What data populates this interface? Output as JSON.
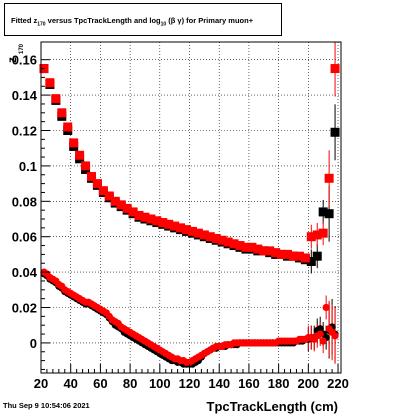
{
  "title": {
    "prefix": "Fitted  z",
    "z_sub": "170",
    "middle": " versus TpcTrackLength and log",
    "log_sub": "10",
    "suffix": " (β  γ) for Primary muon+"
  },
  "date_stamp": "Thu Sep  9 10:54:06 2021",
  "chart_data": {
    "type": "scatter",
    "title": "Fitted z170 versus TpcTrackLength and log10 (β γ) for Primary muon+",
    "xlabel": "TpcTrackLength (cm)",
    "ylabel": "z",
    "ylabel_sub": "170",
    "xlim": [
      20,
      222
    ],
    "ylim": [
      -0.017,
      0.17
    ],
    "grid": true,
    "x_ticks": [
      {
        "v": 20,
        "label": "20"
      },
      {
        "v": 40,
        "label": "40"
      },
      {
        "v": 60,
        "label": "60"
      },
      {
        "v": 80,
        "label": "80"
      },
      {
        "v": 100,
        "label": "100"
      },
      {
        "v": 120,
        "label": "120"
      },
      {
        "v": 140,
        "label": "140"
      },
      {
        "v": 160,
        "label": "160"
      },
      {
        "v": 180,
        "label": "180"
      },
      {
        "v": 200,
        "label": "200"
      },
      {
        "v": 220,
        "label": "220"
      }
    ],
    "y_ticks": [
      {
        "v": 0,
        "label": "0"
      },
      {
        "v": 0.02,
        "label": "0.02"
      },
      {
        "v": 0.04,
        "label": "0.04"
      },
      {
        "v": 0.06,
        "label": "0.06"
      },
      {
        "v": 0.08,
        "label": "0.08"
      },
      {
        "v": 0.1,
        "label": "0.1"
      },
      {
        "v": 0.12,
        "label": "0.12"
      },
      {
        "v": 0.14,
        "label": "0.14"
      },
      {
        "v": 0.16,
        "label": "0.16"
      }
    ],
    "series": [
      {
        "marker": "square",
        "color": "#000000",
        "x": [
          22,
          26,
          30,
          34,
          38,
          42,
          46,
          50,
          54,
          58,
          62,
          66,
          70,
          74,
          78,
          82,
          86,
          90,
          94,
          98,
          102,
          106,
          110,
          114,
          118,
          122,
          126,
          130,
          134,
          138,
          142,
          146,
          150,
          154,
          158,
          162,
          166,
          170,
          174,
          178,
          182,
          186,
          190,
          194,
          198,
          202,
          206,
          210,
          214,
          218
        ],
        "y": [
          0.155,
          0.146,
          0.137,
          0.128,
          0.12,
          0.111,
          0.104,
          0.098,
          0.093,
          0.089,
          0.085,
          0.082,
          0.079,
          0.077,
          0.075,
          0.073,
          0.071,
          0.07,
          0.069,
          0.068,
          0.067,
          0.066,
          0.065,
          0.064,
          0.063,
          0.062,
          0.061,
          0.06,
          0.059,
          0.058,
          0.057,
          0.056,
          0.055,
          0.054,
          0.053,
          0.053,
          0.052,
          0.052,
          0.051,
          0.05,
          0.05,
          0.049,
          0.049,
          0.048,
          0.047,
          0.046,
          0.049,
          0.074,
          0.073,
          0.119
        ]
      },
      {
        "marker": "square",
        "color": "#ff0000",
        "x": [
          22,
          26,
          30,
          34,
          38,
          42,
          46,
          50,
          54,
          58,
          62,
          66,
          70,
          74,
          78,
          82,
          86,
          90,
          94,
          98,
          102,
          106,
          110,
          114,
          118,
          122,
          126,
          130,
          134,
          138,
          142,
          146,
          150,
          154,
          158,
          162,
          166,
          170,
          174,
          178,
          182,
          186,
          190,
          194,
          198,
          202,
          206,
          210,
          214,
          218
        ],
        "y": [
          0.155,
          0.147,
          0.138,
          0.13,
          0.122,
          0.113,
          0.106,
          0.1,
          0.094,
          0.09,
          0.086,
          0.083,
          0.08,
          0.078,
          0.076,
          0.074,
          0.072,
          0.071,
          0.07,
          0.069,
          0.068,
          0.067,
          0.066,
          0.065,
          0.064,
          0.063,
          0.062,
          0.061,
          0.06,
          0.059,
          0.058,
          0.057,
          0.056,
          0.055,
          0.054,
          0.054,
          0.053,
          0.052,
          0.052,
          0.051,
          0.05,
          0.05,
          0.049,
          0.049,
          0.048,
          0.06,
          0.061,
          0.062,
          0.093,
          0.155
        ]
      },
      {
        "marker": "circle",
        "color": "#000000",
        "x": [
          22,
          24,
          26,
          28,
          30,
          32,
          34,
          36,
          38,
          40,
          42,
          44,
          46,
          48,
          50,
          52,
          54,
          56,
          58,
          60,
          62,
          64,
          66,
          68,
          70,
          72,
          74,
          76,
          78,
          80,
          82,
          84,
          86,
          88,
          90,
          92,
          94,
          96,
          98,
          100,
          102,
          104,
          106,
          108,
          110,
          112,
          114,
          116,
          118,
          120,
          122,
          124,
          126,
          128,
          130,
          132,
          134,
          136,
          138,
          140,
          142,
          144,
          146,
          148,
          150,
          152,
          154,
          156,
          158,
          160,
          162,
          164,
          166,
          168,
          170,
          172,
          174,
          176,
          178,
          180,
          182,
          184,
          186,
          188,
          190,
          192,
          194,
          196,
          198,
          200,
          202,
          204,
          206,
          208,
          210,
          212,
          214,
          216,
          218
        ],
        "y": [
          0.039,
          0.038,
          0.036,
          0.035,
          0.034,
          0.032,
          0.031,
          0.029,
          0.028,
          0.027,
          0.026,
          0.025,
          0.024,
          0.023,
          0.022,
          0.022,
          0.021,
          0.02,
          0.019,
          0.018,
          0.017,
          0.016,
          0.014,
          0.012,
          0.01,
          0.009,
          0.008,
          0.006,
          0.005,
          0.004,
          0.003,
          0.002,
          0.001,
          0.0,
          -0.001,
          -0.002,
          -0.003,
          -0.004,
          -0.005,
          -0.006,
          -0.007,
          -0.008,
          -0.009,
          -0.01,
          -0.01,
          -0.011,
          -0.011,
          -0.012,
          -0.012,
          -0.012,
          -0.012,
          -0.011,
          -0.01,
          -0.008,
          -0.006,
          -0.005,
          -0.004,
          -0.003,
          -0.003,
          -0.002,
          -0.002,
          -0.002,
          -0.001,
          -0.001,
          -0.001,
          -0.001,
          0.0,
          0.0,
          0.0,
          0.0,
          0.0,
          0.0,
          0.0,
          0.0,
          0.0,
          0.0,
          0.0,
          0.0,
          0.0,
          0.0,
          0.0,
          0.0,
          0.0,
          0.0,
          0.0,
          0.001,
          0.001,
          0.001,
          0.002,
          0.002,
          0.003,
          0.003,
          0.007,
          0.008,
          0.005,
          0.003,
          0.007,
          0.009,
          0.005
        ]
      },
      {
        "marker": "circle",
        "color": "#ff0000",
        "x": [
          22,
          24,
          26,
          28,
          30,
          32,
          34,
          36,
          38,
          40,
          42,
          44,
          46,
          48,
          50,
          52,
          54,
          56,
          58,
          60,
          62,
          64,
          66,
          68,
          70,
          72,
          74,
          76,
          78,
          80,
          82,
          84,
          86,
          88,
          90,
          92,
          94,
          96,
          98,
          100,
          102,
          104,
          106,
          108,
          110,
          112,
          114,
          116,
          118,
          120,
          122,
          124,
          126,
          128,
          130,
          132,
          134,
          136,
          138,
          140,
          142,
          144,
          146,
          148,
          150,
          152,
          154,
          156,
          158,
          160,
          162,
          164,
          166,
          168,
          170,
          172,
          174,
          176,
          178,
          180,
          182,
          184,
          186,
          188,
          190,
          192,
          194,
          196,
          198,
          200,
          202,
          204,
          206,
          208,
          210,
          212,
          214,
          216,
          218
        ],
        "y": [
          0.04,
          0.039,
          0.037,
          0.036,
          0.035,
          0.033,
          0.032,
          0.03,
          0.029,
          0.028,
          0.027,
          0.026,
          0.025,
          0.024,
          0.023,
          0.023,
          0.022,
          0.021,
          0.02,
          0.019,
          0.018,
          0.017,
          0.015,
          0.013,
          0.012,
          0.011,
          0.009,
          0.008,
          0.007,
          0.006,
          0.005,
          0.004,
          0.003,
          0.002,
          0.001,
          0.0,
          -0.001,
          -0.002,
          -0.003,
          -0.004,
          -0.005,
          -0.006,
          -0.007,
          -0.008,
          -0.009,
          -0.009,
          -0.01,
          -0.01,
          -0.011,
          -0.011,
          -0.01,
          -0.009,
          -0.008,
          -0.007,
          -0.006,
          -0.005,
          -0.004,
          -0.003,
          -0.002,
          -0.002,
          -0.002,
          -0.001,
          -0.001,
          -0.001,
          0.0,
          0.0,
          0.0,
          0.0,
          0.0,
          0.0,
          0.0,
          0.0,
          0.0,
          0.0,
          0.0,
          0.0,
          0.0,
          0.0,
          0.0,
          0.001,
          0.001,
          0.001,
          0.001,
          0.001,
          0.001,
          0.001,
          0.002,
          0.002,
          0.002,
          0.003,
          0.003,
          0.002,
          0.004,
          0.005,
          0.001,
          0.02,
          0.008,
          0.006,
          0.004
        ]
      }
    ]
  }
}
